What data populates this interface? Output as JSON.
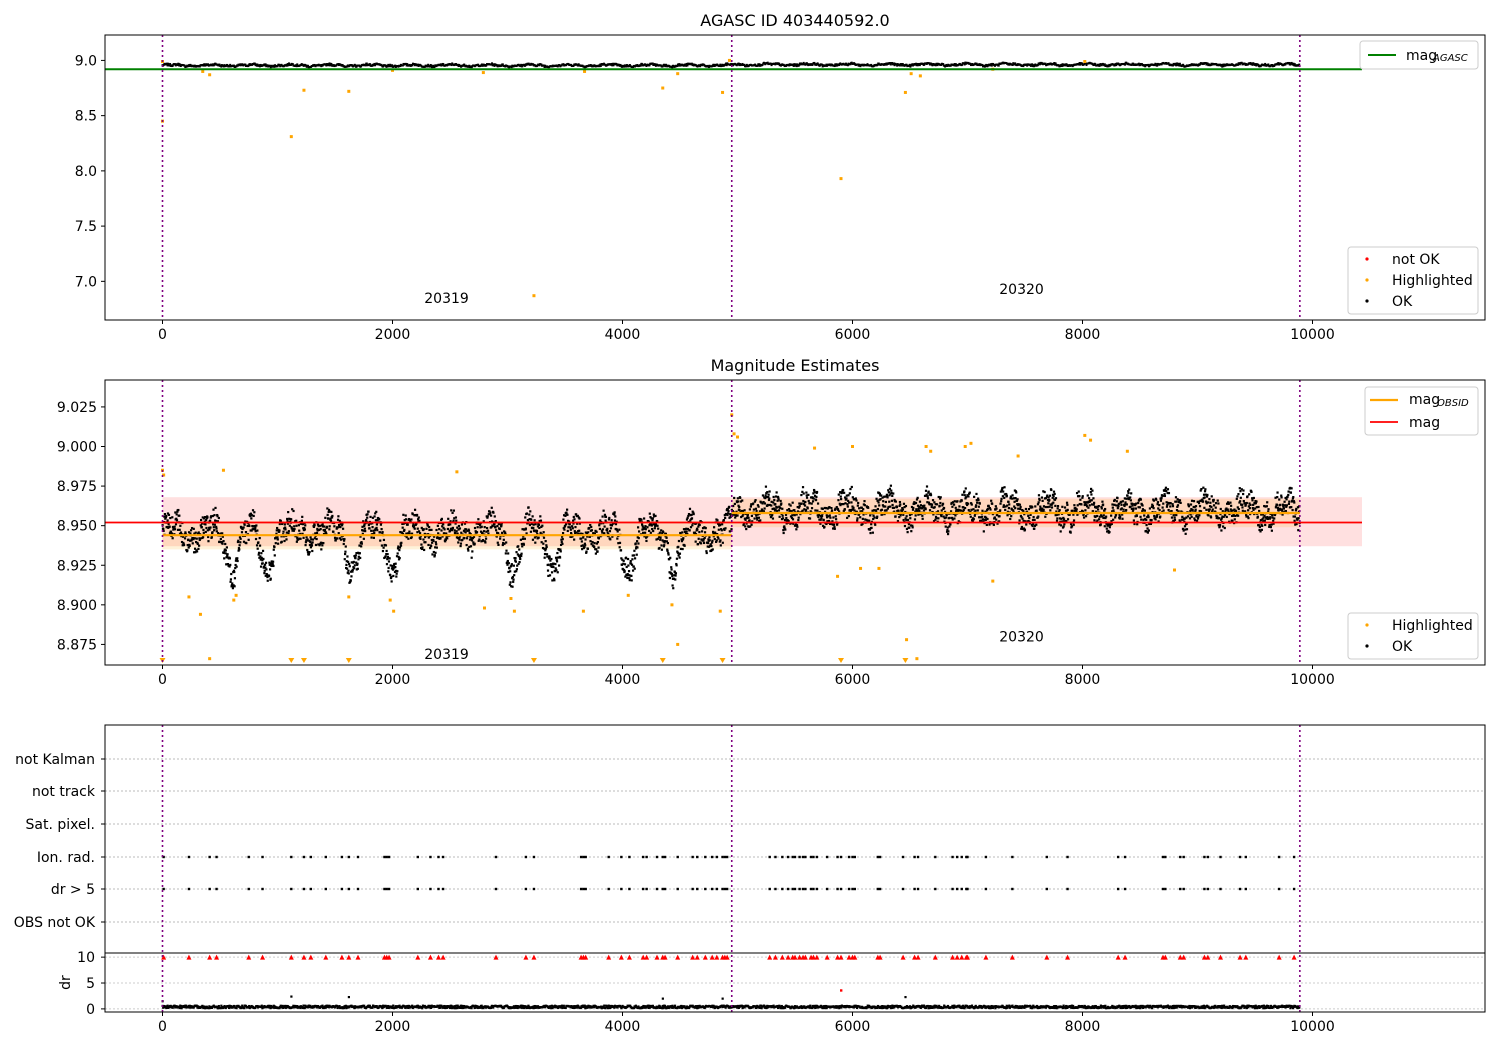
{
  "chart_data": [
    {
      "type": "scatter",
      "title": "AGASC ID 403440592.0",
      "xlim": [
        -500,
        11500
      ],
      "ylim": [
        6.65,
        9.23
      ],
      "xticks": [
        0,
        2000,
        4000,
        6000,
        8000,
        10000
      ],
      "yticks": [
        7.0,
        7.5,
        8.0,
        8.5,
        9.0
      ],
      "ytick_labels": [
        "7.0",
        "7.5",
        "8.0",
        "8.5",
        "9.0"
      ],
      "vlines": [
        0,
        4950,
        9890
      ],
      "obsid_labels": [
        {
          "text": "20319",
          "x": 2470,
          "y": 6.85
        },
        {
          "text": "20320",
          "x": 7470,
          "y": 6.93
        }
      ],
      "mag_agasc": 8.92,
      "ok_series": [
        {
          "x_start": 0,
          "x_end": 4950,
          "base": 8.955,
          "spread": 0.012
        },
        {
          "x_start": 4950,
          "x_end": 9890,
          "base": 8.962,
          "spread": 0.012
        }
      ],
      "highlighted_points": [
        [
          0,
          8.45
        ],
        [
          0,
          8.99
        ],
        [
          350,
          8.9
        ],
        [
          410,
          8.87
        ],
        [
          1120,
          8.31
        ],
        [
          1230,
          8.73
        ],
        [
          1620,
          8.72
        ],
        [
          2000,
          8.91
        ],
        [
          2790,
          8.89
        ],
        [
          3230,
          6.87
        ],
        [
          3670,
          8.9
        ],
        [
          4350,
          8.75
        ],
        [
          4480,
          8.88
        ],
        [
          4870,
          8.71
        ],
        [
          4930,
          9.0
        ],
        [
          5900,
          7.93
        ],
        [
          6460,
          8.71
        ],
        [
          6510,
          8.88
        ],
        [
          6590,
          8.86
        ],
        [
          7220,
          8.92
        ],
        [
          8020,
          8.99
        ]
      ],
      "legend_top": [
        {
          "label": "mag",
          "sub": "AGASC",
          "color": "#008000"
        }
      ],
      "legend_bottom": [
        {
          "label": "not OK",
          "color": "#ff0000"
        },
        {
          "label": "Highlighted",
          "color": "#ffa500"
        },
        {
          "label": "OK",
          "color": "#000000"
        }
      ]
    },
    {
      "type": "scatter",
      "title": "Magnitude Estimates",
      "xlim": [
        -500,
        11500
      ],
      "ylim": [
        8.862,
        9.042
      ],
      "xticks": [
        0,
        2000,
        4000,
        6000,
        8000,
        10000
      ],
      "yticks": [
        8.875,
        8.9,
        8.925,
        8.95,
        8.975,
        9.0,
        9.025
      ],
      "ytick_labels": [
        "8.875",
        "8.900",
        "8.925",
        "8.950",
        "8.975",
        "9.000",
        "9.025"
      ],
      "vlines": [
        0,
        4950,
        9890
      ],
      "obsid_labels": [
        {
          "text": "20319",
          "x": 2470,
          "y": 8.869
        },
        {
          "text": "20320",
          "x": 7470,
          "y": 8.88
        }
      ],
      "mag": 8.952,
      "mag_band": [
        8.937,
        8.968
      ],
      "mag_obsid": [
        {
          "x_start": 0,
          "x_end": 4950,
          "value": 8.944,
          "band": [
            8.935,
            8.953
          ]
        },
        {
          "x_start": 4950,
          "x_end": 9890,
          "value": 8.958,
          "band": [
            8.949,
            8.967
          ]
        }
      ],
      "ok_series": [
        {
          "x_start": 0,
          "x_end": 4950,
          "base": 8.946,
          "spread": 0.01,
          "dips": [
            600,
            900,
            1650,
            2000,
            3050,
            3400,
            4050,
            4450
          ]
        },
        {
          "x_start": 4950,
          "x_end": 9890,
          "base": 8.96,
          "spread": 0.01,
          "dips": []
        }
      ],
      "highlighted_points": [
        [
          0,
          8.985
        ],
        [
          10,
          8.982
        ],
        [
          230,
          8.905
        ],
        [
          330,
          8.894
        ],
        [
          410,
          8.866
        ],
        [
          530,
          8.985
        ],
        [
          620,
          8.903
        ],
        [
          640,
          8.906
        ],
        [
          1620,
          8.905
        ],
        [
          1980,
          8.903
        ],
        [
          2010,
          8.896
        ],
        [
          2560,
          8.984
        ],
        [
          2800,
          8.898
        ],
        [
          3030,
          8.904
        ],
        [
          3060,
          8.896
        ],
        [
          3660,
          8.896
        ],
        [
          4050,
          8.906
        ],
        [
          4430,
          8.9
        ],
        [
          4480,
          8.875
        ],
        [
          4850,
          8.896
        ],
        [
          4950,
          9.02
        ],
        [
          4970,
          9.008
        ],
        [
          5000,
          9.006
        ],
        [
          5670,
          8.999
        ],
        [
          5870,
          8.918
        ],
        [
          6000,
          9.0
        ],
        [
          6070,
          8.923
        ],
        [
          6230,
          8.923
        ],
        [
          6470,
          8.878
        ],
        [
          6560,
          8.866
        ],
        [
          6640,
          9.0
        ],
        [
          6680,
          8.997
        ],
        [
          6980,
          9.0
        ],
        [
          7030,
          9.002
        ],
        [
          7220,
          8.915
        ],
        [
          7440,
          8.994
        ],
        [
          8020,
          9.007
        ],
        [
          8070,
          9.004
        ],
        [
          8390,
          8.997
        ],
        [
          8800,
          8.922
        ]
      ],
      "off_scale_markers_x": [
        0,
        1120,
        1230,
        1620,
        3230,
        4350,
        4870,
        5900,
        6460
      ],
      "legend_top": [
        {
          "label": "mag",
          "sub": "OBSID",
          "color": "#ffa500"
        },
        {
          "label": "mag",
          "sub": "",
          "color": "#ff0000"
        }
      ],
      "legend_bottom": [
        {
          "label": "Highlighted",
          "color": "#ffa500"
        },
        {
          "label": "OK",
          "color": "#000000"
        }
      ]
    },
    {
      "type": "scatter",
      "title": "",
      "xlim": [
        -500,
        11500
      ],
      "xticks": [
        0,
        2000,
        4000,
        6000,
        8000,
        10000
      ],
      "vlines": [
        0,
        4950,
        9890
      ],
      "flag_rows": [
        "not Kalman",
        "not track",
        "Sat. pixel.",
        "Ion. rad.",
        "dr > 5",
        "OBS not OK"
      ],
      "flagged_times": [
        10,
        230,
        410,
        470,
        750,
        870,
        1120,
        1230,
        1290,
        1420,
        1560,
        1620,
        1700,
        1930,
        1950,
        1970,
        2220,
        2330,
        2400,
        2440,
        2900,
        3160,
        3230,
        3640,
        3660,
        3680,
        3880,
        3990,
        4060,
        4180,
        4210,
        4300,
        4350,
        4370,
        4480,
        4610,
        4650,
        4720,
        4780,
        4820,
        4870,
        4890,
        4910,
        5280,
        5330,
        5390,
        5440,
        5480,
        5500,
        5540,
        5570,
        5590,
        5640,
        5660,
        5690,
        5780,
        5870,
        5900,
        5970,
        6000,
        6020,
        6220,
        6240,
        6440,
        6540,
        6570,
        6720,
        6870,
        6910,
        6950,
        6990,
        7000,
        7160,
        7390,
        7690,
        7870,
        8310,
        8370,
        8700,
        8720,
        8850,
        8880,
        9060,
        9090,
        9200,
        9370,
        9420,
        9710,
        9840
      ],
      "dr_axis": {
        "ylabel": "dr",
        "ylim": [
          -0.6,
          10.8
        ],
        "yticks": [
          0,
          5,
          10
        ],
        "cap": 10,
        "ok_base": 0.4,
        "outliers_ok": [
          [
            0,
            1.5
          ],
          [
            1120,
            2.4
          ],
          [
            1620,
            2.3
          ],
          [
            4350,
            2.0
          ],
          [
            4870,
            2.0
          ],
          [
            6460,
            2.3
          ]
        ],
        "outliers_not_ok": [
          [
            5900,
            3.6
          ]
        ]
      }
    }
  ]
}
